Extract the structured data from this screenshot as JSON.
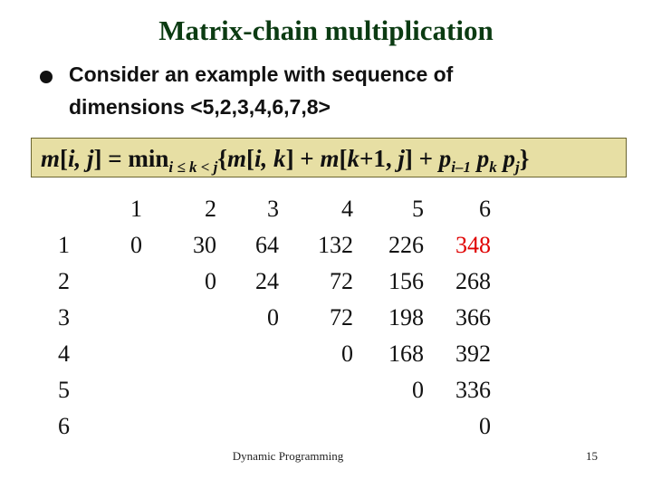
{
  "title": "Matrix-chain multiplication",
  "bullet": {
    "line1": "Consider an example with sequence of",
    "line2": "dimensions <5,2,3,4,6,7,8>"
  },
  "formula": [
    "m",
    "[",
    "i, j",
    "] = min",
    "i ≤ k < j",
    "{",
    "m",
    "[",
    "i, k",
    "] + ",
    "m",
    "[",
    "k",
    "+1, ",
    "j",
    "] + ",
    "p",
    "i–1",
    " p",
    "k",
    " p",
    "j",
    "}"
  ],
  "table": {
    "column_headers": [
      "1",
      "2",
      "3",
      "4",
      "5",
      "6"
    ],
    "row_labels": [
      "1",
      "2",
      "3",
      "4",
      "5",
      "6"
    ],
    "rows": [
      [
        0,
        30,
        64,
        132,
        226,
        348
      ],
      [
        0,
        24,
        72,
        156,
        268
      ],
      [
        0,
        72,
        198,
        366
      ],
      [
        0,
        168,
        392
      ],
      [
        0,
        336
      ],
      [
        0
      ]
    ]
  },
  "footer": {
    "center": "Dynamic Programming",
    "page": "15"
  }
}
